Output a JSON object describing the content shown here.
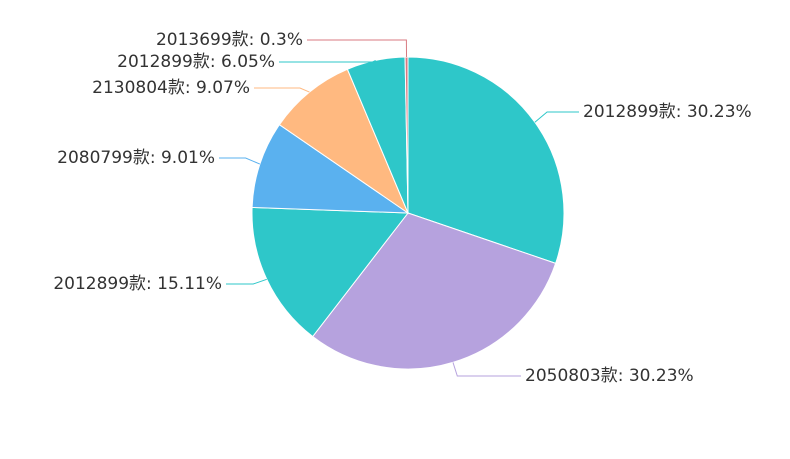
{
  "chart_data": {
    "type": "pie",
    "values": [
      30.23,
      30.23,
      15.11,
      9.01,
      9.07,
      6.05,
      0.3
    ],
    "value_labels": [
      "2012899款: 30.23%",
      "2050803款: 30.23%",
      "2012899款: 15.11%",
      "2080799款: 9.01%",
      "2130804款: 9.07%",
      "2012899款: 6.05%",
      "2013699款: 0.3%"
    ],
    "colors": [
      "#2ec7c9",
      "#b6a2de",
      "#2ec7c9",
      "#5ab1ef",
      "#ffb980",
      "#2ec7c9",
      "#d87a80"
    ]
  }
}
